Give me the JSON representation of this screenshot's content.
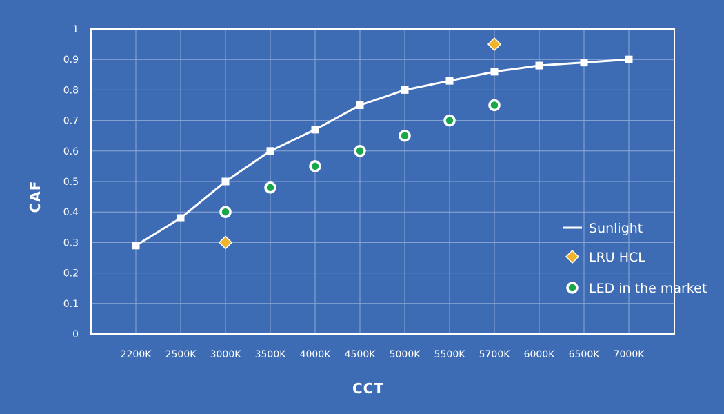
{
  "chart_data": {
    "type": "line",
    "xlabel": "CCT",
    "ylabel": "CAF",
    "categories": [
      "2200K",
      "2500K",
      "3000K",
      "3500K",
      "4000K",
      "4500K",
      "5000K",
      "5500K",
      "5700K",
      "6000K",
      "6500K",
      "7000K"
    ],
    "yticks": [
      "0",
      "0.1",
      "0.2",
      "0.3",
      "0.4",
      "0.5",
      "0.6",
      "0.7",
      "0.8",
      "0.9",
      "1"
    ],
    "ylim": [
      0,
      1
    ],
    "grid": true,
    "legend_position": "right",
    "series": [
      {
        "name": "Sunlight",
        "type": "line",
        "marker": "square",
        "color": "#ffffff",
        "points": [
          {
            "x": "2200K",
            "y": 0.29
          },
          {
            "x": "2500K",
            "y": 0.38
          },
          {
            "x": "3000K",
            "y": 0.5
          },
          {
            "x": "3500K",
            "y": 0.6
          },
          {
            "x": "4000K",
            "y": 0.67
          },
          {
            "x": "4500K",
            "y": 0.75
          },
          {
            "x": "5000K",
            "y": 0.8
          },
          {
            "x": "5500K",
            "y": 0.83
          },
          {
            "x": "5700K",
            "y": 0.86
          },
          {
            "x": "6000K",
            "y": 0.88
          },
          {
            "x": "6500K",
            "y": 0.89
          },
          {
            "x": "7000K",
            "y": 0.9
          }
        ]
      },
      {
        "name": "LRU HCL",
        "type": "scatter",
        "marker": "diamond",
        "color": "#f0b429",
        "points": [
          {
            "x": "3000K",
            "y": 0.3
          },
          {
            "x": "5700K",
            "y": 0.95
          }
        ]
      },
      {
        "name": "LED in the market",
        "type": "scatter",
        "marker": "circle",
        "color": "#1aa64a",
        "points": [
          {
            "x": "3000K",
            "y": 0.4
          },
          {
            "x": "3500K",
            "y": 0.48
          },
          {
            "x": "4000K",
            "y": 0.55
          },
          {
            "x": "4500K",
            "y": 0.6
          },
          {
            "x": "5000K",
            "y": 0.65
          },
          {
            "x": "5500K",
            "y": 0.7
          },
          {
            "x": "5700K",
            "y": 0.75
          }
        ]
      }
    ]
  },
  "colors": {
    "background": "#3d6cb4",
    "plot_border": "#ffffff",
    "grid": "#8fa9d6"
  }
}
